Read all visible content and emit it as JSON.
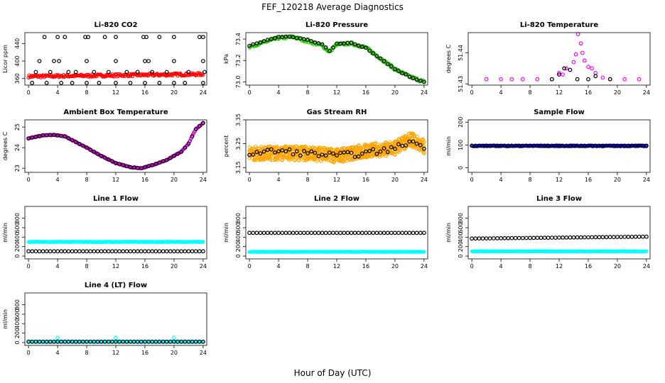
{
  "figure": {
    "title": "FEF_120218  Average Diagnostics",
    "xlabel": "Hour of Day (UTC)"
  },
  "chart_data": [
    {
      "type": "scatter",
      "title": "Li-820 CO2",
      "ylabel": "Licor ppm",
      "xlim": [
        -0.5,
        24.5
      ],
      "ylim": [
        345,
        465
      ],
      "xticks": [
        0,
        4,
        8,
        12,
        16,
        20,
        24
      ],
      "yticks": [
        360,
        400,
        440
      ],
      "series": [
        {
          "color": "#ff0000",
          "marker": "dense",
          "x": [
            0,
            24
          ],
          "y": [
            365,
            370
          ],
          "noise": 3
        },
        {
          "color": "#000000",
          "marker": "ring",
          "x": [
            0,
            24
          ],
          "y": [
            372,
            372
          ],
          "noise": 0,
          "points": [
            [
              2.2,
              455
            ],
            [
              4,
              455
            ],
            [
              5,
              455
            ],
            [
              7.8,
              455
            ],
            [
              8.2,
              455
            ],
            [
              10.5,
              455
            ],
            [
              12,
              455
            ],
            [
              15.8,
              455
            ],
            [
              16.2,
              455
            ],
            [
              18,
              455
            ],
            [
              20,
              455
            ],
            [
              23.5,
              455
            ],
            [
              24,
              455
            ],
            [
              1.5,
              400
            ],
            [
              3.5,
              400
            ],
            [
              4.2,
              400
            ],
            [
              8,
              400
            ],
            [
              12,
              400
            ],
            [
              16,
              400
            ],
            [
              16.5,
              400
            ],
            [
              20,
              400
            ],
            [
              24,
              400
            ],
            [
              0.5,
              350
            ],
            [
              2.5,
              350
            ],
            [
              4.5,
              350
            ],
            [
              6,
              350
            ],
            [
              8,
              350
            ],
            [
              9.7,
              350
            ],
            [
              12,
              350
            ],
            [
              14,
              350
            ],
            [
              16,
              350
            ],
            [
              18,
              350
            ],
            [
              20,
              350
            ],
            [
              21.5,
              350
            ],
            [
              24,
              350
            ],
            [
              1,
              375
            ],
            [
              3,
              375
            ],
            [
              5.5,
              375
            ],
            [
              6.5,
              375
            ],
            [
              9,
              375
            ],
            [
              11,
              375
            ],
            [
              13.5,
              375
            ],
            [
              15,
              375
            ],
            [
              17,
              375
            ],
            [
              19,
              375
            ],
            [
              22,
              375
            ],
            [
              24.2,
              375
            ]
          ]
        }
      ]
    },
    {
      "type": "scatter",
      "title": "Li-820 Pressure",
      "ylabel": "kPa",
      "xlim": [
        -0.5,
        24.5
      ],
      "ylim": [
        72.97,
        73.46
      ],
      "xticks": [
        0,
        4,
        8,
        12,
        16,
        20,
        24
      ],
      "yticks": [
        73.0,
        73.2,
        73.4
      ],
      "series": [
        {
          "color": "#22cc00",
          "marker": "dense",
          "x": [
            0,
            2,
            4,
            6,
            8,
            10,
            11,
            12,
            14,
            16,
            18,
            20,
            22,
            24
          ],
          "y": [
            73.33,
            73.37,
            73.41,
            73.42,
            73.38,
            73.34,
            73.28,
            73.35,
            73.36,
            73.32,
            73.22,
            73.12,
            73.05,
            73.0
          ],
          "noise": 0.012
        },
        {
          "color": "#000000",
          "marker": "ring",
          "x": [
            0,
            2,
            4,
            6,
            8,
            10,
            11,
            12,
            14,
            16,
            18,
            20,
            22,
            24
          ],
          "y": [
            73.34,
            73.38,
            73.42,
            73.42,
            73.39,
            73.35,
            73.29,
            73.36,
            73.36,
            73.32,
            73.22,
            73.12,
            73.05,
            73.0
          ],
          "noise": 0.005
        }
      ]
    },
    {
      "type": "scatter",
      "title": "Li-820 Temperature",
      "ylabel": "degrees C",
      "xlim": [
        -0.5,
        24.5
      ],
      "ylim": [
        51.4296,
        51.4465
      ],
      "xticks": [
        0,
        4,
        8,
        12,
        16,
        20,
        24
      ],
      "yticks": [
        51.43,
        51.44
      ],
      "series": [
        {
          "color": "#ff00ff",
          "marker": "ring",
          "x": [
            0,
            24
          ],
          "y": [
            51.43,
            51.43
          ],
          "noise": 0,
          "points": [
            [
              2,
              51.4315
            ],
            [
              4,
              51.4315
            ],
            [
              5.5,
              51.4315
            ],
            [
              7,
              51.4315
            ],
            [
              9,
              51.4315
            ],
            [
              11,
              51.4315
            ],
            [
              12,
              51.4335
            ],
            [
              12.5,
              51.433
            ],
            [
              13,
              51.435
            ],
            [
              13.5,
              51.4345
            ],
            [
              14,
              51.437
            ],
            [
              14.3,
              51.4395
            ],
            [
              14.6,
              51.446
            ],
            [
              15,
              51.443
            ],
            [
              15.2,
              51.44
            ],
            [
              15.5,
              51.4375
            ],
            [
              16,
              51.4355
            ],
            [
              16.5,
              51.435
            ],
            [
              17,
              51.4335
            ],
            [
              18,
              51.432
            ],
            [
              19,
              51.4315
            ],
            [
              21,
              51.4315
            ],
            [
              23,
              51.4315
            ]
          ]
        },
        {
          "color": "#000000",
          "marker": "ring",
          "x": [
            0,
            24
          ],
          "y": [
            51.43,
            51.43
          ],
          "noise": 0,
          "points": [
            [
              11,
              51.4315
            ],
            [
              12,
              51.433
            ],
            [
              12.7,
              51.435
            ],
            [
              13.5,
              51.4345
            ],
            [
              14.5,
              51.4315
            ],
            [
              16,
              51.4315
            ],
            [
              17,
              51.4325
            ],
            [
              19,
              51.4315
            ]
          ]
        }
      ]
    },
    {
      "type": "scatter",
      "title": "Ambient Box Temperature",
      "ylabel": "degrees C",
      "xlim": [
        -0.5,
        24.5
      ],
      "ylim": [
        22.8,
        25.35
      ],
      "xticks": [
        0,
        4,
        8,
        12,
        16,
        20,
        24
      ],
      "yticks": [
        23.0,
        24.0,
        25.0
      ],
      "series": [
        {
          "color": "#cc00cc",
          "marker": "dense",
          "x": [
            0,
            2,
            3.5,
            5,
            8,
            10,
            12,
            14,
            15.5,
            17,
            19,
            21,
            22,
            23,
            24
          ],
          "y": [
            24.45,
            24.6,
            24.62,
            24.55,
            24.0,
            23.6,
            23.25,
            23.05,
            23.0,
            23.15,
            23.4,
            23.8,
            24.2,
            24.9,
            25.2
          ],
          "noise": 0.02
        },
        {
          "color": "#000000",
          "marker": "ring",
          "x": [
            0,
            2,
            3.5,
            5,
            8,
            10,
            12,
            14,
            15.5,
            17,
            19,
            21,
            22,
            23,
            24
          ],
          "y": [
            24.45,
            24.6,
            24.62,
            24.55,
            24.0,
            23.6,
            23.25,
            23.05,
            23.0,
            23.15,
            23.4,
            23.8,
            24.2,
            24.9,
            25.2
          ],
          "noise": 0
        }
      ]
    },
    {
      "type": "scatter",
      "title": "Gas Stream RH",
      "ylabel": "percent",
      "xlim": [
        -0.5,
        24.5
      ],
      "ylim": [
        3.13,
        3.35
      ],
      "xticks": [
        0,
        4,
        8,
        12,
        16,
        20,
        24
      ],
      "yticks": [
        3.15,
        3.25,
        3.35
      ],
      "series": [
        {
          "color": "#ffa500",
          "marker": "cloud",
          "x": [
            0,
            4,
            8,
            12,
            16,
            20,
            22,
            24
          ],
          "y": [
            3.21,
            3.21,
            3.21,
            3.2,
            3.22,
            3.23,
            3.27,
            3.24
          ],
          "noise": 0.03
        },
        {
          "color": "#000000",
          "marker": "ring",
          "x": [
            0,
            4,
            8,
            12,
            16,
            20,
            22,
            24
          ],
          "y": [
            3.21,
            3.22,
            3.21,
            3.2,
            3.21,
            3.23,
            3.26,
            3.24
          ],
          "noise": 0.012
        }
      ]
    },
    {
      "type": "scatter",
      "title": "Sample Flow",
      "ylabel": "ml/min",
      "xlim": [
        -0.5,
        24.5
      ],
      "ylim": [
        -20,
        210
      ],
      "xticks": [
        0,
        4,
        8,
        12,
        16,
        20,
        24
      ],
      "yticks": [
        0,
        100,
        200
      ],
      "series": [
        {
          "color": "#0000cc",
          "marker": "dense",
          "x": [
            0,
            24
          ],
          "y": [
            96,
            96
          ],
          "noise": 2
        },
        {
          "color": "#000000",
          "marker": "ring",
          "x": [
            0,
            24
          ],
          "y": [
            97,
            97
          ],
          "noise": 0
        }
      ]
    },
    {
      "type": "scatter",
      "title": "Line 1 Flow",
      "ylabel": "ml/min",
      "xlim": [
        -0.5,
        24.5
      ],
      "ylim": [
        -60,
        1050
      ],
      "xticks": [
        0,
        4,
        8,
        12,
        16,
        20,
        24
      ],
      "yticks": [
        0,
        200,
        400,
        600,
        800
      ],
      "series": [
        {
          "color": "#00ffff",
          "marker": "dense",
          "x": [
            0,
            24
          ],
          "y": [
            300,
            300
          ],
          "noise": 6
        },
        {
          "color": "#000000",
          "marker": "ring",
          "x": [
            0,
            24
          ],
          "y": [
            100,
            100
          ],
          "noise": 0
        }
      ]
    },
    {
      "type": "scatter",
      "title": "Line 2 Flow",
      "ylabel": "ml/min",
      "xlim": [
        -0.5,
        24.5
      ],
      "ylim": [
        -60,
        1050
      ],
      "xticks": [
        0,
        4,
        8,
        12,
        16,
        20,
        24
      ],
      "yticks": [
        0,
        200,
        400,
        600,
        800
      ],
      "series": [
        {
          "color": "#00ffff",
          "marker": "dense",
          "x": [
            0,
            24
          ],
          "y": [
            90,
            90
          ],
          "noise": 4
        },
        {
          "color": "#000000",
          "marker": "ring",
          "x": [
            0,
            24
          ],
          "y": [
            490,
            490
          ],
          "noise": 0
        }
      ]
    },
    {
      "type": "scatter",
      "title": "Line 3 Flow",
      "ylabel": "ml/min",
      "xlim": [
        -0.5,
        24.5
      ],
      "ylim": [
        -60,
        1050
      ],
      "xticks": [
        0,
        4,
        8,
        12,
        16,
        20,
        24
      ],
      "yticks": [
        0,
        200,
        400,
        600,
        800
      ],
      "series": [
        {
          "color": "#00ffff",
          "marker": "dense",
          "x": [
            0,
            24
          ],
          "y": [
            100,
            100
          ],
          "noise": 5
        },
        {
          "color": "#000000",
          "marker": "ring",
          "x": [
            0,
            12,
            24
          ],
          "y": [
            370,
            390,
            410
          ],
          "noise": 0
        }
      ]
    },
    {
      "type": "scatter",
      "title": "Line 4 (LT) Flow",
      "ylabel": "ml/min",
      "xlim": [
        -0.5,
        24.5
      ],
      "ylim": [
        -60,
        1050
      ],
      "xticks": [
        0,
        4,
        8,
        12,
        16,
        20,
        24
      ],
      "yticks": [
        0,
        200,
        400,
        600,
        800
      ],
      "series": [
        {
          "color": "#00ffff",
          "marker": "dense",
          "x": [
            0,
            24
          ],
          "y": [
            20,
            20
          ],
          "noise": 3,
          "points": [
            [
              4,
              100
            ],
            [
              12,
              100
            ],
            [
              20,
              100
            ]
          ]
        },
        {
          "color": "#000000",
          "marker": "ring",
          "x": [
            0,
            24
          ],
          "y": [
            18,
            18
          ],
          "noise": 0
        }
      ]
    }
  ]
}
